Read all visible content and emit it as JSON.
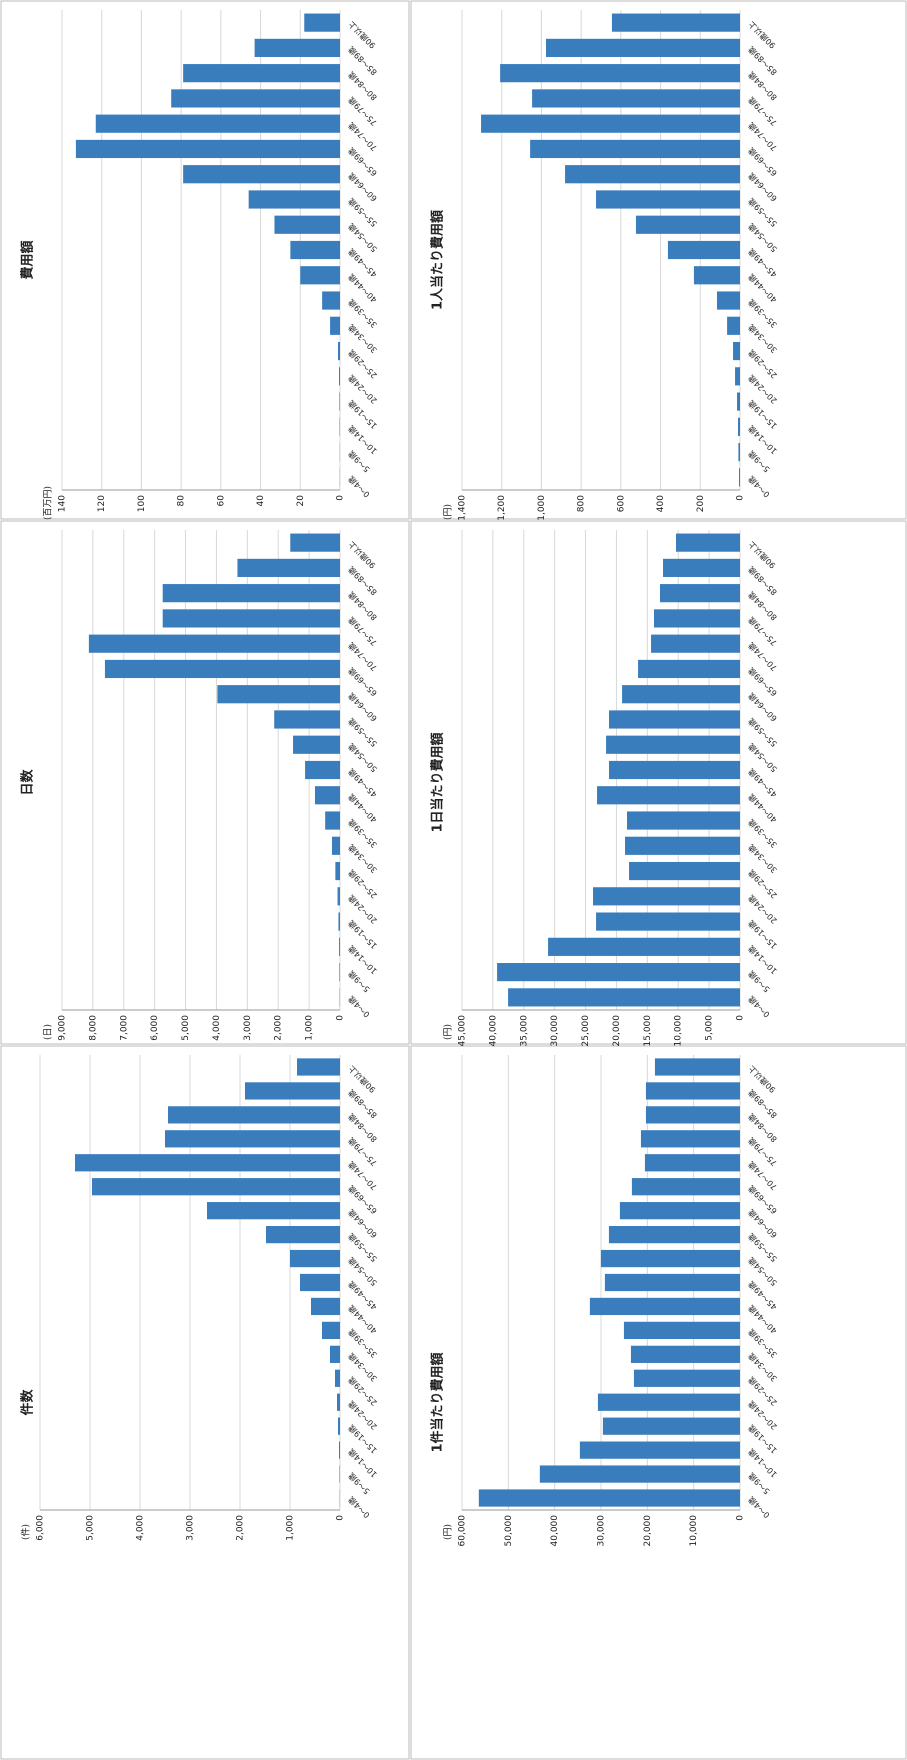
{
  "chart_data": [
    {
      "type": "bar",
      "title": "件数",
      "ylabel": "(件)",
      "categories": [
        "0～4歳",
        "5～9歳",
        "10～14歳",
        "15～19歳",
        "20～24歳",
        "25～29歳",
        "30～34歳",
        "35～39歳",
        "40～44歳",
        "45～49歳",
        "50～54歳",
        "55～59歳",
        "60～64歳",
        "65～69歳",
        "70～74歳",
        "75～79歳",
        "80～84歳",
        "85～89歳",
        "90歳以上"
      ],
      "values": [
        5,
        10,
        20,
        40,
        60,
        100,
        200,
        360,
        580,
        800,
        1000,
        1480,
        2660,
        4960,
        5300,
        3500,
        3440,
        1900,
        860
      ],
      "color": "#3a7dbd",
      "ylim": [
        0,
        6000
      ],
      "yticks": [
        0,
        {
          "value": 1000,
          "label": "1,000"
        },
        {
          "value": 2000,
          "label": "2,000"
        },
        {
          "value": 3000,
          "label": "3,000"
        },
        {
          "value": 4000,
          "label": "4,000"
        },
        {
          "value": 5000,
          "label": "5,000"
        },
        {
          "value": 6000,
          "label": "6,000"
        }
      ],
      "grid": true
    },
    {
      "type": "bar",
      "title": "日数",
      "ylabel": "(日)",
      "categories": [
        "0～4歳",
        "5～9歳",
        "10～14歳",
        "15～19歳",
        "20～24歳",
        "25～29歳",
        "30～34歳",
        "35～39歳",
        "40～44歳",
        "45～49歳",
        "50～54歳",
        "55～59歳",
        "60～64歳",
        "65～69歳",
        "70～74歳",
        "75～79歳",
        "80～84歳",
        "85～89歳",
        "90歳以上"
      ],
      "values": [
        10,
        20,
        30,
        50,
        80,
        150,
        260,
        480,
        810,
        1130,
        1520,
        2130,
        3970,
        7610,
        8130,
        5740,
        5740,
        3320,
        1610
      ],
      "color": "#3a7dbd",
      "ylim": [
        0,
        9000
      ],
      "yticks": [
        0,
        {
          "value": 1000,
          "label": "1,000"
        },
        {
          "value": 2000,
          "label": "2,000"
        },
        {
          "value": 3000,
          "label": "3,000"
        },
        {
          "value": 4000,
          "label": "4,000"
        },
        {
          "value": 5000,
          "label": "5,000"
        },
        {
          "value": 6000,
          "label": "6,000"
        },
        {
          "value": 7000,
          "label": "7,000"
        },
        {
          "value": 8000,
          "label": "8,000"
        },
        {
          "value": 9000,
          "label": "9,000"
        }
      ],
      "grid": true
    },
    {
      "type": "bar",
      "title": "費用額",
      "ylabel": "(百万円)",
      "categories": [
        "0～4歳",
        "5～9歳",
        "10～14歳",
        "15～19歳",
        "20～24歳",
        "25～29歳",
        "30～34歳",
        "35～39歳",
        "40～44歳",
        "45～49歳",
        "50～54歳",
        "55～59歳",
        "60～64歳",
        "65～69歳",
        "70～74歳",
        "75～79歳",
        "80～84歳",
        "85～89歳",
        "90歳以上"
      ],
      "values": [
        0.1,
        0.1,
        0.2,
        0.3,
        0.5,
        1,
        5,
        9,
        20,
        25,
        33,
        46,
        79,
        133,
        123,
        85,
        79,
        43,
        18
      ],
      "color": "#3a7dbd",
      "ylim": [
        0,
        140
      ],
      "yticks": [
        0,
        20,
        40,
        60,
        80,
        100,
        120,
        140
      ],
      "grid": true
    },
    {
      "type": "bar",
      "title": "1件当たり費用額",
      "ylabel": "(円)",
      "categories": [
        "0～4歳",
        "5～9歳",
        "10～14歳",
        "15～19歳",
        "20～24歳",
        "25～29歳",
        "30～34歳",
        "35～39歳",
        "40～44歳",
        "45～49歳",
        "50～54歳",
        "55～59歳",
        "60～64歳",
        "65～69歳",
        "70～74歳",
        "75～79歳",
        "80～84歳",
        "85～89歳",
        "90歳以上"
      ],
      "values": [
        56370,
        43200,
        34560,
        29590,
        30670,
        22890,
        23540,
        25050,
        32400,
        29160,
        30020,
        28290,
        25920,
        23330,
        20520,
        21380,
        20300,
        20300,
        18360
      ],
      "color": "#3a7dbd",
      "ylim": [
        0,
        60000
      ],
      "yticks": [
        0,
        {
          "value": 10000,
          "label": "10,000"
        },
        {
          "value": 20000,
          "label": "20,000"
        },
        {
          "value": 30000,
          "label": "30,000"
        },
        {
          "value": 40000,
          "label": "40,000"
        },
        {
          "value": 50000,
          "label": "50,000"
        },
        {
          "value": 60000,
          "label": "60,000"
        }
      ],
      "grid": true
    },
    {
      "type": "bar",
      "title": "1日当たり費用額",
      "ylabel": "(円)",
      "categories": [
        "0～4歳",
        "5～9歳",
        "10～14歳",
        "15～19歳",
        "20～24歳",
        "25～29歳",
        "30～34歳",
        "35～39歳",
        "40～44歳",
        "45～49歳",
        "50～54歳",
        "55～59歳",
        "60～64歳",
        "65～69歳",
        "70～74歳",
        "75～79歳",
        "80～84歳",
        "85～89歳",
        "90歳以上"
      ],
      "values": [
        37540,
        39320,
        31070,
        23300,
        23790,
        17960,
        18610,
        18290,
        23140,
        21200,
        21680,
        21200,
        19090,
        16500,
        14400,
        13920,
        12950,
        12460,
        10360
      ],
      "color": "#3a7dbd",
      "ylim": [
        0,
        45000
      ],
      "yticks": [
        0,
        {
          "value": 5000,
          "label": "5,000"
        },
        {
          "value": 10000,
          "label": "10,000"
        },
        {
          "value": 15000,
          "label": "15,000"
        },
        {
          "value": 20000,
          "label": "20,000"
        },
        {
          "value": 25000,
          "label": "25,000"
        },
        {
          "value": 30000,
          "label": "30,000"
        },
        {
          "value": 35000,
          "label": "35,000"
        },
        {
          "value": 40000,
          "label": "40,000"
        },
        {
          "value": 45000,
          "label": "45,000"
        }
      ],
      "grid": true
    },
    {
      "type": "bar",
      "title": "1人当たり費用額",
      "ylabel": "(円)",
      "categories": [
        "0～4歳",
        "5～9歳",
        "10～14歳",
        "15～19歳",
        "20～24歳",
        "25～29歳",
        "30～34歳",
        "35～39歳",
        "40～44歳",
        "45～49歳",
        "50～54歳",
        "55～59歳",
        "60～64歳",
        "65～69歳",
        "70～74歳",
        "75～79歳",
        "80～84歳",
        "85～89歳",
        "90歳以上"
      ],
      "values": [
        5,
        8,
        10,
        15,
        25,
        35,
        65,
        116,
        232,
        363,
        524,
        725,
        881,
        1057,
        1304,
        1047,
        1208,
        977,
        645
      ],
      "color": "#3a7dbd",
      "ylim": [
        0,
        1400
      ],
      "yticks": [
        0,
        200,
        400,
        600,
        800,
        {
          "value": 1000,
          "label": "1,000"
        },
        {
          "value": 1200,
          "label": "1,200"
        },
        {
          "value": 1400,
          "label": "1,400"
        }
      ],
      "grid": true
    }
  ]
}
